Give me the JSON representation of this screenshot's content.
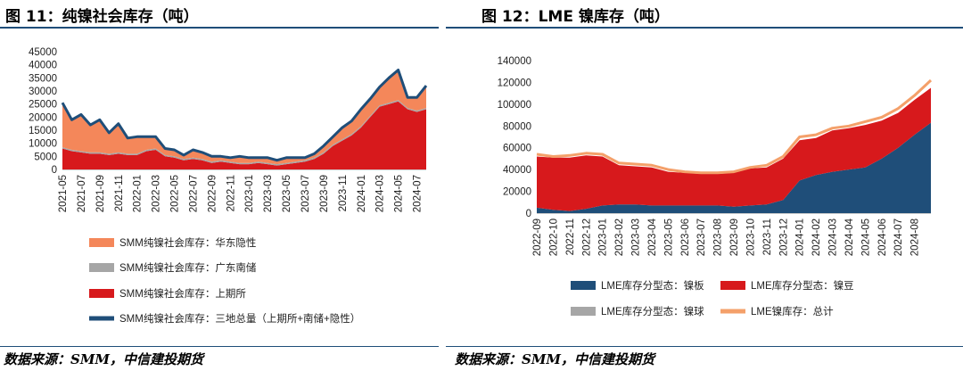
{
  "left": {
    "figure_title": "图 11：纯镍社会库存（吨）",
    "source": "数据来源：SMM，中信建投期货",
    "chart_data": {
      "type": "area",
      "title": "",
      "ylim": [
        0,
        45000
      ],
      "yticks": [
        0,
        5000,
        10000,
        15000,
        20000,
        25000,
        30000,
        35000,
        40000,
        45000
      ],
      "xtick_labels": [
        "2021-05",
        "2021-07",
        "2021-09",
        "2021-11",
        "2022-01",
        "2022-03",
        "2022-05",
        "2022-07",
        "2022-09",
        "2022-11",
        "2023-01",
        "2023-03",
        "2023-05",
        "2023-07",
        "2023-09",
        "2023-11",
        "2024-01",
        "2024-03",
        "2024-05",
        "2024-07"
      ],
      "x": [
        "2021-05",
        "2021-06",
        "2021-07",
        "2021-08",
        "2021-09",
        "2021-10",
        "2021-11",
        "2021-12",
        "2022-01",
        "2022-02",
        "2022-03",
        "2022-04",
        "2022-05",
        "2022-06",
        "2022-07",
        "2022-08",
        "2022-09",
        "2022-10",
        "2022-11",
        "2022-12",
        "2023-01",
        "2023-02",
        "2023-03",
        "2023-04",
        "2023-05",
        "2023-06",
        "2023-07",
        "2023-08",
        "2023-09",
        "2023-10",
        "2023-11",
        "2023-12",
        "2024-01",
        "2024-02",
        "2024-03",
        "2024-04",
        "2024-05",
        "2024-06",
        "2024-07",
        "2024-08"
      ],
      "series": [
        {
          "name": "SMM纯镍社会库存：上期所",
          "color": "#d7191c",
          "values": [
            8000,
            7000,
            6500,
            6000,
            6000,
            5500,
            6000,
            5500,
            5500,
            7000,
            7500,
            5000,
            4500,
            3500,
            4000,
            3500,
            2500,
            3000,
            2500,
            2000,
            2000,
            2500,
            2000,
            1500,
            2000,
            2500,
            3000,
            4000,
            6000,
            9000,
            11000,
            13000,
            16000,
            20000,
            24000,
            25000,
            26000,
            23000,
            22000,
            23000
          ]
        },
        {
          "name": "SMM纯镍社会库存：广东南储",
          "color": "#a6a6a6",
          "values": [
            500,
            500,
            500,
            500,
            500,
            500,
            500,
            500,
            500,
            500,
            500,
            500,
            500,
            500,
            500,
            500,
            500,
            500,
            500,
            500,
            500,
            500,
            500,
            500,
            500,
            500,
            500,
            500,
            500,
            500,
            500,
            500,
            500,
            500,
            500,
            500,
            500,
            500,
            500,
            500
          ]
        },
        {
          "name": "SMM纯镍社会库存：华东隐性",
          "color": "#f4875a",
          "values": [
            17000,
            11500,
            14000,
            10500,
            12500,
            8000,
            11000,
            6000,
            6500,
            5000,
            4500,
            2500,
            2500,
            1500,
            3000,
            2500,
            2000,
            1500,
            1500,
            2500,
            2000,
            1500,
            2000,
            1500,
            2000,
            1500,
            1000,
            1500,
            2500,
            3000,
            4500,
            5000,
            6500,
            6500,
            7000,
            9500,
            11500,
            4000,
            5000,
            8500
          ]
        },
        {
          "name": "SMM纯镍社会库存：三地总量（上期所+南储+隐性）",
          "color": "#1f4e79",
          "values": [
            25500,
            19000,
            21000,
            17000,
            19000,
            14000,
            17500,
            12000,
            12500,
            12500,
            12500,
            8000,
            7500,
            5500,
            7500,
            6500,
            5000,
            5000,
            4500,
            5000,
            4500,
            4500,
            4500,
            3500,
            4500,
            4500,
            4500,
            6000,
            9000,
            12500,
            16000,
            18500,
            23000,
            27000,
            31500,
            35000,
            38000,
            27500,
            27500,
            32000
          ]
        }
      ],
      "legend_placement": "bottom"
    }
  },
  "right": {
    "figure_title": "图 12：LME 镍库存（吨）",
    "source": "数据来源：SMM，中信建投期货",
    "chart_data": {
      "type": "area",
      "title": "",
      "ylim": [
        0,
        140000
      ],
      "yticks": [
        0,
        20000,
        40000,
        60000,
        80000,
        100000,
        120000,
        140000
      ],
      "xtick_labels": [
        "2022-09",
        "2022-10",
        "2022-11",
        "2022-12",
        "2023-01",
        "2023-02",
        "2023-03",
        "2023-04",
        "2023-05",
        "2023-06",
        "2023-07",
        "2023-08",
        "2023-09",
        "2023-10",
        "2023-11",
        "2023-12",
        "2024-01",
        "2024-02",
        "2024-03",
        "2024-04",
        "2024-05",
        "2024-06",
        "2024-07",
        "2024-08"
      ],
      "x": [
        "2022-09",
        "2022-10",
        "2022-11",
        "2022-12",
        "2023-01",
        "2023-02",
        "2023-03",
        "2023-04",
        "2023-05",
        "2023-06",
        "2023-07",
        "2023-08",
        "2023-09",
        "2023-10",
        "2023-11",
        "2023-12",
        "2024-01",
        "2024-02",
        "2024-03",
        "2024-04",
        "2024-05",
        "2024-06",
        "2024-07",
        "2024-08",
        "2024-09"
      ],
      "series": [
        {
          "name": "LME库存分型态：镍板",
          "color": "#1f4e79",
          "values": [
            5000,
            3000,
            2000,
            4000,
            7000,
            8000,
            8000,
            7000,
            7000,
            7000,
            7000,
            7000,
            6000,
            7000,
            8000,
            12000,
            30000,
            35000,
            38000,
            40000,
            42000,
            50000,
            60000,
            72000,
            83000
          ]
        },
        {
          "name": "LME库存分型态：镍豆",
          "color": "#d7191c",
          "values": [
            47000,
            48000,
            49000,
            49000,
            45000,
            36000,
            35000,
            35000,
            31000,
            30000,
            29000,
            29000,
            31000,
            34000,
            34000,
            38000,
            37000,
            34000,
            38000,
            38000,
            39000,
            35000,
            32000,
            32000,
            32000
          ]
        },
        {
          "name": "LME库存分型态：镍球",
          "color": "#a6a6a6",
          "values": [
            0,
            0,
            0,
            0,
            0,
            0,
            0,
            0,
            0,
            0,
            0,
            0,
            0,
            0,
            0,
            0,
            0,
            0,
            0,
            0,
            0,
            0,
            0,
            0,
            0
          ]
        },
        {
          "name": "LME镍库存：总计",
          "color": "#f4a06a",
          "values": [
            54000,
            52000,
            53000,
            55000,
            54000,
            46000,
            45000,
            44000,
            40000,
            38000,
            37000,
            37000,
            38000,
            42000,
            44000,
            52000,
            70000,
            72000,
            78000,
            80000,
            84000,
            88000,
            96000,
            108000,
            122000
          ]
        }
      ],
      "legend_placement": "bottom"
    }
  }
}
